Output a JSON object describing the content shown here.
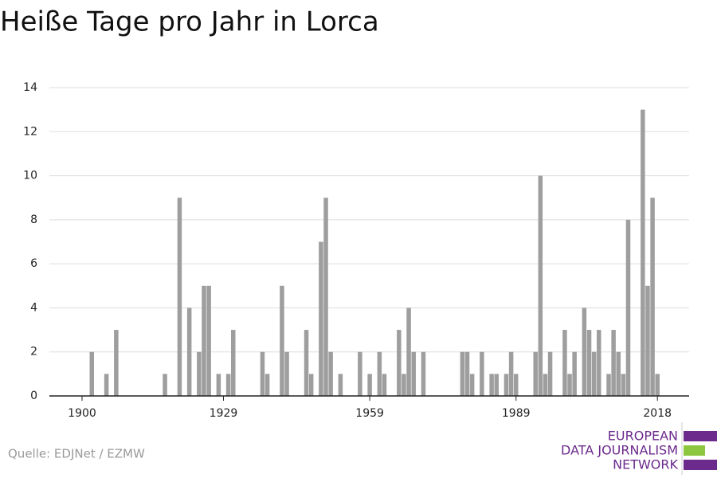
{
  "chart_data": {
    "type": "bar",
    "title": "Heiße Tage pro Jahr in Lorca",
    "source": "Quelle: EDJNet / EZMW",
    "logo": [
      "EUROPEAN",
      "DATA JOURNALISM",
      "NETWORK"
    ],
    "x": [
      1902,
      1905,
      1907,
      1917,
      1920,
      1922,
      1924,
      1925,
      1926,
      1928,
      1930,
      1931,
      1937,
      1938,
      1941,
      1942,
      1946,
      1947,
      1949,
      1950,
      1951,
      1953,
      1957,
      1959,
      1961,
      1962,
      1965,
      1966,
      1967,
      1968,
      1970,
      1978,
      1979,
      1980,
      1982,
      1984,
      1985,
      1987,
      1988,
      1989,
      1993,
      1994,
      1995,
      1996,
      1999,
      2000,
      2001,
      2003,
      2004,
      2005,
      2006,
      2008,
      2009,
      2010,
      2011,
      2012,
      2015,
      2016,
      2017,
      2018
    ],
    "values": [
      2,
      1,
      3,
      1,
      9,
      4,
      2,
      5,
      5,
      1,
      1,
      3,
      2,
      1,
      5,
      2,
      3,
      1,
      7,
      9,
      2,
      1,
      2,
      1,
      2,
      1,
      3,
      1,
      4,
      2,
      2,
      2,
      2,
      1,
      2,
      1,
      1,
      1,
      2,
      1,
      2,
      10,
      1,
      2,
      3,
      1,
      2,
      4,
      3,
      2,
      3,
      1,
      3,
      2,
      1,
      8,
      13,
      5,
      9,
      1
    ],
    "color": "#9e9e9e",
    "xlim": [
      1893.3,
      2024.5
    ],
    "xticks": [
      1900,
      1929,
      1959,
      1989,
      2018
    ],
    "ylim": [
      0,
      14
    ],
    "yticks": [
      0,
      2,
      4,
      6,
      8,
      10,
      12,
      14
    ],
    "grid": true
  }
}
